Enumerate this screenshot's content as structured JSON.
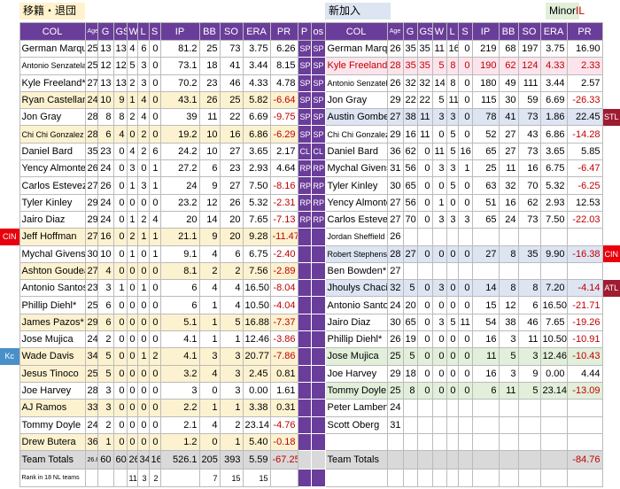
{
  "top": {
    "left_label": "移籍・退団",
    "right_label": "新加入",
    "minor": "Minor",
    "il": "IL"
  },
  "header": {
    "left": [
      "COL",
      "Age",
      "G",
      "GS",
      "W",
      "L",
      "S",
      "IP",
      "BB",
      "SO",
      "ERA",
      "PR"
    ],
    "pos": [
      "P",
      "os"
    ],
    "right": [
      "COL",
      "Age",
      "G",
      "GS",
      "W",
      "L",
      "S",
      "IP",
      "BB",
      "SO",
      "ERA",
      "PR"
    ]
  },
  "rows": [
    {
      "left": [
        "German Marquez",
        "25",
        "13",
        "13",
        "4",
        "6",
        "0",
        "81.2",
        "25",
        "73",
        "3.75",
        "6.26"
      ],
      "pos": [
        "SP",
        "SP"
      ],
      "right": [
        "German Marquez",
        "26",
        "35",
        "35",
        "11",
        "16",
        "0",
        "219",
        "68",
        "197",
        "3.75",
        "16.90"
      ]
    },
    {
      "left": [
        "Antonio Senzatela",
        "25",
        "12",
        "12",
        "5",
        "3",
        "0",
        "73.1",
        "18",
        "41",
        "3.44",
        "8.15"
      ],
      "pos": [
        "SP",
        "SP"
      ],
      "right": [
        "Kyle Freeland*",
        "28",
        "35",
        "35",
        "5",
        "8",
        "0",
        "190",
        "62",
        "124",
        "4.33",
        "2.33"
      ]
    },
    {
      "left": [
        "Kyle Freeland*",
        "27",
        "13",
        "13",
        "2",
        "3",
        "0",
        "70.2",
        "23",
        "46",
        "4.33",
        "4.78"
      ],
      "pos": [
        "SP",
        "SP"
      ],
      "right": [
        "Antonio Senzatela",
        "26",
        "32",
        "32",
        "14",
        "8",
        "0",
        "180",
        "49",
        "111",
        "3.44",
        "2.57"
      ]
    },
    {
      "left": [
        "Ryan Castellani",
        "24",
        "10",
        "9",
        "1",
        "4",
        "0",
        "43.1",
        "26",
        "25",
        "5.82",
        "-6.64"
      ],
      "pos": [
        "SP",
        "SP"
      ],
      "right": [
        "Jon Gray",
        "29",
        "22",
        "22",
        "5",
        "11",
        "0",
        "115",
        "30",
        "59",
        "6.69",
        "-26.33"
      ]
    },
    {
      "left": [
        "Jon Gray",
        "28",
        "8",
        "8",
        "2",
        "4",
        "0",
        "39",
        "11",
        "22",
        "6.69",
        "-9.75"
      ],
      "pos": [
        "SP",
        "SP"
      ],
      "right": [
        "Austin Gomber*",
        "27",
        "38",
        "11",
        "3",
        "3",
        "0",
        "78",
        "41",
        "73",
        "1.86",
        "22.45"
      ],
      "right_team": "STL"
    },
    {
      "left": [
        "Chi Chi Gonzalez",
        "28",
        "6",
        "4",
        "0",
        "2",
        "0",
        "19.2",
        "10",
        "16",
        "6.86",
        "-6.29"
      ],
      "pos": [
        "SP",
        "SP"
      ],
      "right": [
        "Chi Chi Gonzalez",
        "29",
        "16",
        "11",
        "0",
        "5",
        "0",
        "52",
        "27",
        "43",
        "6.86",
        "-14.28"
      ]
    },
    {
      "left": [
        "Daniel Bard",
        "35",
        "23",
        "0",
        "4",
        "2",
        "6",
        "24.2",
        "10",
        "27",
        "3.65",
        "2.17"
      ],
      "pos": [
        "CL",
        "CL"
      ],
      "right": [
        "Daniel Bard",
        "36",
        "62",
        "0",
        "11",
        "5",
        "16",
        "65",
        "27",
        "73",
        "3.65",
        "5.85"
      ]
    },
    {
      "left": [
        "Yency Almonte",
        "26",
        "24",
        "0",
        "3",
        "0",
        "1",
        "27.2",
        "6",
        "23",
        "2.93",
        "4.64"
      ],
      "pos": [
        "RP",
        "RP"
      ],
      "right": [
        "Mychal Givens",
        "31",
        "56",
        "0",
        "3",
        "3",
        "1",
        "25",
        "11",
        "16",
        "6.75",
        "-6.47"
      ]
    },
    {
      "left": [
        "Carlos Estevez",
        "27",
        "26",
        "0",
        "1",
        "3",
        "1",
        "24",
        "9",
        "27",
        "7.50",
        "-8.16"
      ],
      "pos": [
        "RP",
        "RP"
      ],
      "right": [
        "Tyler Kinley",
        "30",
        "65",
        "0",
        "0",
        "5",
        "0",
        "63",
        "32",
        "70",
        "5.32",
        "-6.25"
      ]
    },
    {
      "left": [
        "Tyler Kinley",
        "29",
        "24",
        "0",
        "0",
        "0",
        "0",
        "23.2",
        "12",
        "26",
        "5.32",
        "-2.31"
      ],
      "pos": [
        "RP",
        "RP"
      ],
      "right": [
        "Yency Almonte",
        "27",
        "56",
        "0",
        "1",
        "0",
        "0",
        "51",
        "16",
        "62",
        "2.93",
        "12.53"
      ]
    },
    {
      "left": [
        "Jairo Diaz",
        "29",
        "24",
        "0",
        "1",
        "2",
        "4",
        "20",
        "14",
        "20",
        "7.65",
        "-7.13"
      ],
      "pos": [
        "RP",
        "RP"
      ],
      "right": [
        "Carlos Estevez",
        "27",
        "70",
        "0",
        "3",
        "3",
        "3",
        "65",
        "24",
        "73",
        "7.50",
        "-22.03"
      ]
    },
    {
      "left_team": "CIN",
      "left": [
        "Jeff Hoffman",
        "27",
        "16",
        "0",
        "2",
        "1",
        "1",
        "21.1",
        "9",
        "20",
        "9.28",
        "-11.47"
      ],
      "right": [
        "Jordan Sheffield",
        "26"
      ]
    },
    {
      "left": [
        "Mychal Givens",
        "30",
        "10",
        "0",
        "1",
        "0",
        "1",
        "9.1",
        "4",
        "6",
        "6.75",
        "-2.40"
      ],
      "right": [
        "Robert Stephenson",
        "28",
        "27",
        "0",
        "0",
        "0",
        "0",
        "27",
        "8",
        "35",
        "9.90",
        "-16.38"
      ],
      "right_team": "CIN"
    },
    {
      "left": [
        "Ashton Goudeau",
        "27",
        "4",
        "0",
        "0",
        "0",
        "0",
        "8.1",
        "2",
        "2",
        "7.56",
        "-2.89"
      ],
      "right": [
        "Ben Bowden*",
        "27"
      ]
    },
    {
      "left": [
        "Antonio Santos",
        "23",
        "3",
        "1",
        "0",
        "1",
        "0",
        "6",
        "4",
        "4",
        "16.50",
        "-8.04"
      ],
      "right": [
        "Jhoulys Chacin",
        "32",
        "5",
        "0",
        "3",
        "0",
        "0",
        "14",
        "8",
        "8",
        "7.20",
        "-4.14"
      ],
      "right_team": "ATL"
    },
    {
      "left": [
        "Phillip Diehl*",
        "25",
        "6",
        "0",
        "0",
        "0",
        "0",
        "6",
        "1",
        "4",
        "10.50",
        "-4.04"
      ],
      "right": [
        "Antonio Santos",
        "24",
        "20",
        "0",
        "0",
        "0",
        "0",
        "15",
        "12",
        "6",
        "16.50",
        "-21.71"
      ]
    },
    {
      "left": [
        "James Pazos*",
        "29",
        "6",
        "0",
        "0",
        "0",
        "0",
        "5.1",
        "1",
        "5",
        "16.88",
        "-7.37"
      ],
      "right": [
        "Jairo Diaz",
        "30",
        "65",
        "0",
        "3",
        "5",
        "11",
        "54",
        "38",
        "46",
        "7.65",
        "-19.26"
      ]
    },
    {
      "left": [
        "Jose Mujica",
        "24",
        "2",
        "0",
        "0",
        "0",
        "0",
        "4.1",
        "1",
        "1",
        "12.46",
        "-3.86"
      ],
      "right": [
        "Phillip Diehl*",
        "26",
        "19",
        "0",
        "0",
        "0",
        "0",
        "16",
        "3",
        "11",
        "10.50",
        "-10.91"
      ]
    },
    {
      "left_team": "Kc",
      "left": [
        "Wade Davis",
        "34",
        "5",
        "0",
        "0",
        "1",
        "2",
        "4.1",
        "3",
        "3",
        "20.77",
        "-7.86"
      ],
      "right": [
        "Jose Mujica",
        "25",
        "5",
        "0",
        "0",
        "0",
        "0",
        "11",
        "5",
        "3",
        "12.46",
        "-10.43"
      ]
    },
    {
      "left": [
        "Jesus Tinoco",
        "25",
        "5",
        "0",
        "0",
        "0",
        "0",
        "3.2",
        "4",
        "3",
        "2.45",
        "0.81"
      ],
      "right": [
        "Joe Harvey",
        "29",
        "18",
        "0",
        "0",
        "0",
        "0",
        "16",
        "3",
        "9",
        "0.00",
        "4.44"
      ]
    },
    {
      "left": [
        "Joe Harvey",
        "28",
        "3",
        "0",
        "0",
        "0",
        "0",
        "3",
        "0",
        "3",
        "0.00",
        "1.61"
      ],
      "right": [
        "Tommy Doyle",
        "25",
        "8",
        "0",
        "0",
        "0",
        "0",
        "6",
        "11",
        "5",
        "23.14",
        "-13.09"
      ]
    },
    {
      "left": [
        "AJ Ramos",
        "33",
        "3",
        "0",
        "0",
        "0",
        "0",
        "2.2",
        "1",
        "1",
        "3.38",
        "0.31"
      ],
      "right": [
        "Peter Lambert",
        "24"
      ]
    },
    {
      "left": [
        "Tommy Doyle",
        "24",
        "2",
        "0",
        "0",
        "0",
        "0",
        "2.1",
        "4",
        "2",
        "23.14",
        "-4.76"
      ],
      "right": [
        "Scott Oberg",
        "31"
      ]
    },
    {
      "left": [
        "Drew Butera",
        "36",
        "1",
        "0",
        "0",
        "0",
        "0",
        "1.2",
        "0",
        "1",
        "5.40",
        "-0.18"
      ]
    }
  ],
  "totals": {
    "left": [
      "Team Totals",
      "26.6",
      "60",
      "60",
      "26",
      "34",
      "16",
      "526.1",
      "205",
      "393",
      "5.59",
      "-67.25"
    ],
    "right": [
      "Team Totals",
      null,
      null,
      null,
      null,
      null,
      null,
      null,
      null,
      null,
      null,
      "-84.76"
    ]
  },
  "rank": {
    "left": [
      "Rank in 18 NL teams",
      null,
      null,
      null,
      "11",
      "3",
      "2",
      null,
      "7",
      "15",
      "15"
    ]
  }
}
